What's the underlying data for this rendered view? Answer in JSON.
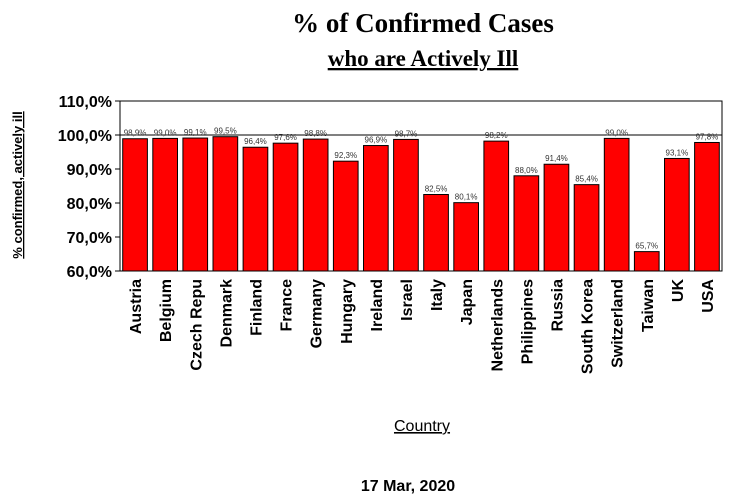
{
  "chart_data": {
    "type": "bar",
    "title": "% of Confirmed Cases",
    "subtitle": "who are Actively Ill",
    "xlabel": "Country",
    "ylabel": "% confirmed, actively ill",
    "footer": "17 Mar, 2020",
    "ylim": [
      60,
      110
    ],
    "yticks": [
      60,
      70,
      80,
      90,
      100,
      110
    ],
    "ytick_labels": [
      "60,0%",
      "70,0%",
      "80,0%",
      "90,0%",
      "100,0%",
      "110,0%"
    ],
    "grid": false,
    "bar_color": "#ff0000",
    "categories": [
      "Austria",
      "Belgium",
      "Czech Repu",
      "Denmark",
      "Finland",
      "France",
      "Germany",
      "Hungary",
      "Ireland",
      "Israel",
      "Italy",
      "Japan",
      "Netherlands",
      "Philippines",
      "Russia",
      "South Korea",
      "Switzerland",
      "Taiwan",
      "UK",
      "USA"
    ],
    "values": [
      98.9,
      99.0,
      99.1,
      99.5,
      96.4,
      97.6,
      98.8,
      92.3,
      96.9,
      98.7,
      82.5,
      80.1,
      98.2,
      88.0,
      91.4,
      85.4,
      99.0,
      65.7,
      93.1,
      97.8
    ],
    "value_labels": [
      "98,9%",
      "99,0%",
      "99,1%",
      "99,5%",
      "96,4%",
      "97,6%",
      "98,8%",
      "92,3%",
      "96,9%",
      "98,7%",
      "82,5%",
      "80,1%",
      "98,2%",
      "88,0%",
      "91,4%",
      "85,4%",
      "99,0%",
      "65,7%",
      "93,1%",
      "97,8%"
    ]
  }
}
